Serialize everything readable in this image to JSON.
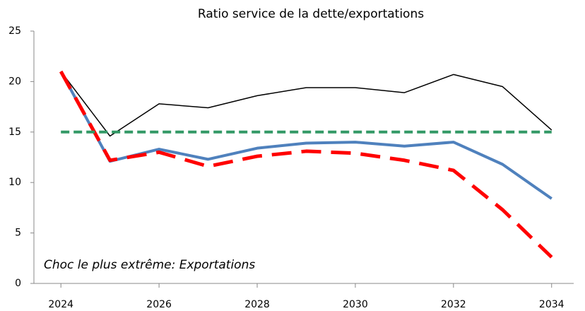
{
  "chart_data": {
    "type": "line",
    "title": "Ratio service de la dette/exportations",
    "annotation": "Choc le plus extrême: Exportations",
    "x": [
      2024,
      2025,
      2026,
      2027,
      2028,
      2029,
      2030,
      2031,
      2032,
      2033,
      2034
    ],
    "xlim": [
      2023.45,
      2034.45
    ],
    "xticks": [
      2024,
      2026,
      2028,
      2030,
      2032,
      2034
    ],
    "ylim": [
      0,
      25
    ],
    "yticks": [
      0,
      5,
      10,
      15,
      20,
      25
    ],
    "grid": false,
    "series": [
      {
        "color": "#000000",
        "width": 1.5,
        "dash": "none",
        "values": [
          21,
          14.6,
          17.8,
          17.4,
          18.6,
          19.4,
          19.4,
          18.9,
          20.7,
          19.5,
          15.2
        ]
      },
      {
        "color": "#4f81bd",
        "width": 4,
        "dash": "none",
        "values": [
          21,
          12.1,
          13.3,
          12.3,
          13.4,
          13.9,
          14.0,
          13.6,
          14.0,
          11.8,
          8.4
        ]
      },
      {
        "color": "#ff0000",
        "width": 5,
        "dash": "28 14",
        "values": [
          21,
          12.2,
          13.0,
          11.6,
          12.6,
          13.1,
          12.9,
          12.2,
          11.2,
          7.3,
          2.6
        ]
      },
      {
        "color": "#339966",
        "width": 4,
        "dash": "12 6",
        "values": [
          15,
          15,
          15,
          15,
          15,
          15,
          15,
          15,
          15,
          15,
          15
        ]
      }
    ]
  }
}
